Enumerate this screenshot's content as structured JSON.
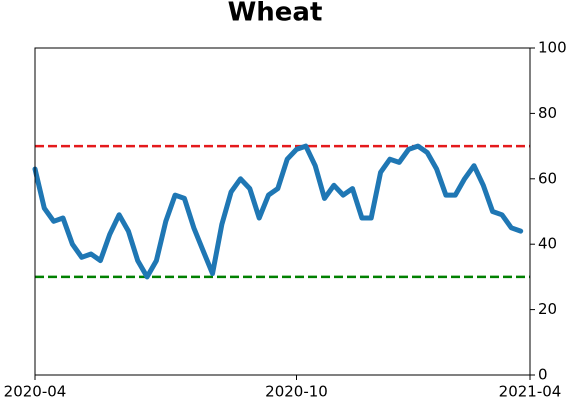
{
  "chart_data": {
    "type": "line",
    "title": "Wheat",
    "categories": [
      "2020-04",
      null,
      null,
      null,
      null,
      null,
      null,
      null,
      null,
      null,
      null,
      null,
      null,
      null,
      null,
      null,
      null,
      null,
      null,
      null,
      null,
      null,
      null,
      null,
      null,
      null,
      null,
      null,
      "2020-10",
      null,
      null,
      null,
      null,
      null,
      null,
      null,
      null,
      null,
      null,
      null,
      null,
      null,
      null,
      null,
      null,
      null,
      null,
      null,
      null,
      null,
      null,
      null,
      null,
      "2021-04"
    ],
    "series": [
      {
        "color": "#1f77b4",
        "values": [
          63,
          51,
          47,
          48,
          40,
          36,
          37,
          35,
          43,
          49,
          44,
          35,
          30,
          35,
          47,
          55,
          54,
          45,
          38,
          31,
          46,
          56,
          60,
          57,
          48,
          55,
          57,
          66,
          69,
          70,
          64,
          54,
          58,
          55,
          57,
          48,
          48,
          62,
          66,
          65,
          69,
          70,
          68,
          63,
          55,
          55,
          60,
          64,
          58,
          50,
          49,
          45,
          44,
          null
        ]
      }
    ],
    "hlines": [
      {
        "value": 70,
        "color": "#e41a1c"
      },
      {
        "value": 30,
        "color": "#008000"
      }
    ],
    "ylim": [
      0,
      100
    ],
    "yticks": [
      0,
      20,
      40,
      60,
      80,
      100
    ],
    "grid": false
  }
}
